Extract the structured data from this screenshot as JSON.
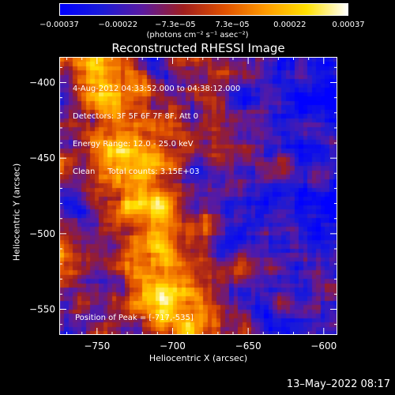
{
  "chart_data": {
    "type": "heatmap",
    "title": "Reconstructed RHESSI Image",
    "xlabel": "Heliocentric X (arcsec)",
    "ylabel": "Heliocentric Y (arcsec)",
    "xlim": [
      -775,
      -591
    ],
    "ylim": [
      -567,
      -383
    ],
    "xticks": [
      -750,
      -700,
      -650,
      -600
    ],
    "yticks": [
      -400,
      -450,
      -500,
      -550
    ],
    "xtick_labels": [
      "−750",
      "−700",
      "−650",
      "−600"
    ],
    "ytick_labels": [
      "−400",
      "−450",
      "−500",
      "−550"
    ],
    "colorbar": {
      "range": [
        -0.00037,
        0.00037
      ],
      "tick_labels": [
        "−0.00037",
        "−0.00022",
        "−7.3e−05",
        "7.3e−05",
        "0.00022",
        "0.00037"
      ],
      "unit_label": "(photons cm⁻² s⁻¹ asec⁻²)",
      "colors": [
        "#0000ff",
        "#1a1ad8",
        "#5a1aa0",
        "#a01e1e",
        "#e05000",
        "#ff9a00",
        "#ffe000",
        "#ffffff"
      ]
    },
    "annotations": [
      "4-Aug-2012 04:33:52.000 to 04:38:12.000",
      "Detectors: 3F 5F 6F 7F 8F, Att 0",
      "Energy Range: 12.0 - 25.0 keV",
      "Clean     Total counts: 3.15E+03"
    ],
    "peak_label": "Position of Peak = [-717,-535]",
    "peak": [
      -717,
      -535
    ],
    "grid": false
  },
  "footer": {
    "date": "13–May–2022 08:17"
  }
}
